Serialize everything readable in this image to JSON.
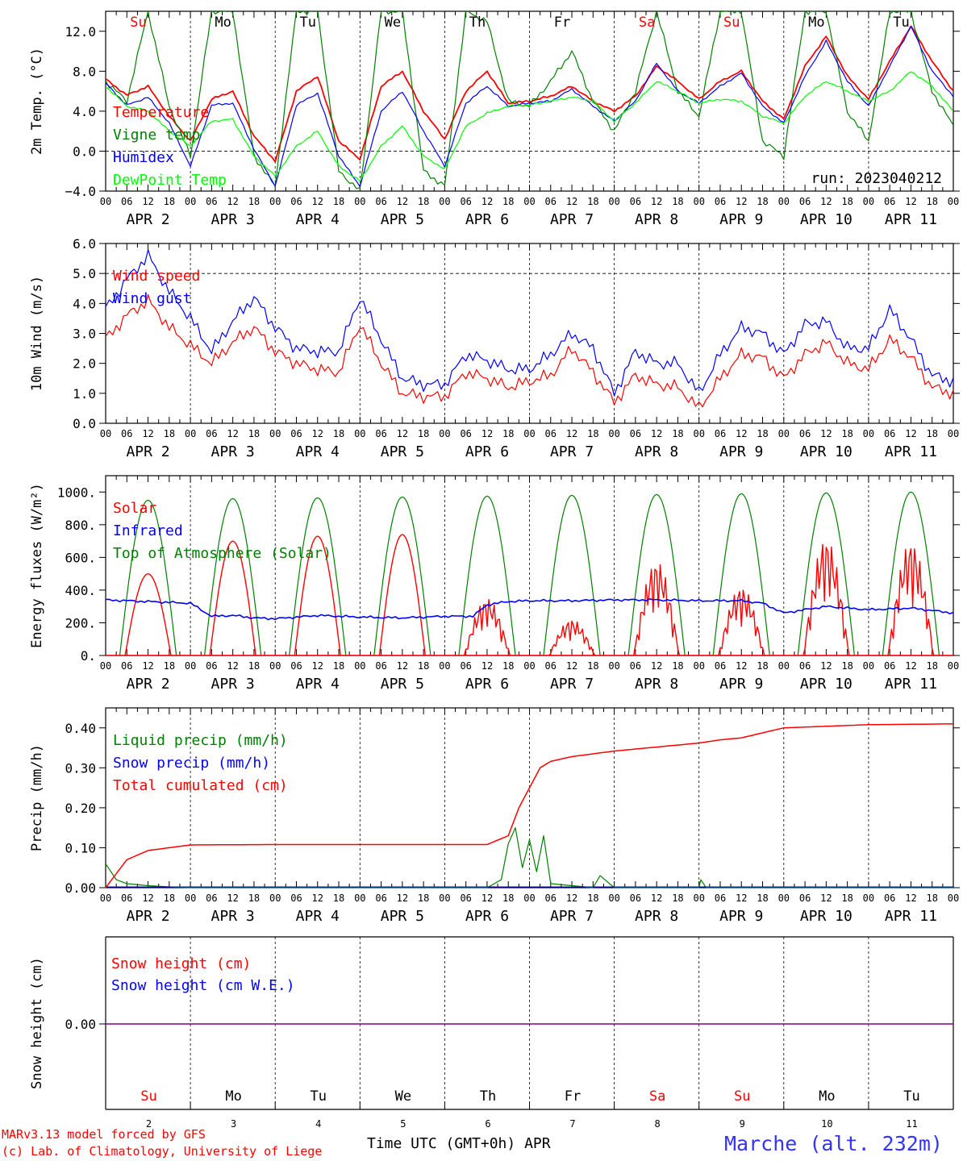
{
  "footer": {
    "model": "MARv3.13 model forced by GFS",
    "copyright": "(c) Lab. of Climatology, University of Liege",
    "xlabel": "Time UTC (GMT+0h) APR",
    "station": "Marche (alt. 232m)",
    "day_numbers": [
      "2",
      "3",
      "4",
      "5",
      "6",
      "7",
      "8",
      "9",
      "10",
      "11"
    ]
  },
  "colors": {
    "red": "#ff0000",
    "green": "#008000",
    "blue": "#0000ff",
    "lightgreen": "#00ff00",
    "purple": "#800080"
  },
  "chart_data": [
    {
      "id": "temp",
      "type": "line",
      "ylabel": "2m Temp. (°C)",
      "ylim": [
        -4,
        14
      ],
      "yticks": [
        -4,
        0,
        4,
        8,
        12
      ],
      "ytick_labels": [
        "−4.0",
        "0.0",
        "4.0",
        "8.0",
        "12.0"
      ],
      "dashed_ref": 0,
      "days": [
        "Su",
        "Mo",
        "Tu",
        "We",
        "Th",
        "Fr",
        "Sa",
        "Su",
        "Mo",
        "Tu"
      ],
      "day_colors": [
        "red",
        "black",
        "black",
        "black",
        "black",
        "black",
        "red",
        "red",
        "black",
        "black"
      ],
      "annotation": "run: 2023040212",
      "x_hours": [
        0,
        6,
        12,
        18,
        24,
        30,
        36,
        42,
        48,
        54,
        60,
        66,
        72,
        78,
        84,
        90,
        96,
        102,
        108,
        114,
        120,
        126,
        132,
        138,
        144,
        150,
        156,
        162,
        168,
        174,
        180,
        186,
        192,
        198,
        204,
        210,
        216,
        222,
        228,
        234,
        240
      ],
      "series": [
        {
          "name": "Temperature",
          "color": "red",
          "values": [
            7.2,
            5.6,
            6.5,
            3.5,
            1.0,
            5.2,
            6.0,
            1.5,
            -1.0,
            6.0,
            7.5,
            1.0,
            -0.8,
            6.5,
            8.0,
            4.0,
            1.2,
            6.0,
            8.0,
            4.8,
            5.0,
            5.5,
            6.5,
            5.0,
            4.0,
            5.5,
            8.5,
            7.0,
            5.2,
            7.0,
            8.0,
            5.0,
            3.2,
            8.5,
            11.5,
            7.5,
            5.2,
            9.0,
            12.5,
            9.0,
            6.0
          ]
        },
        {
          "name": "Vigne temp",
          "color": "green",
          "values": [
            7.0,
            5.0,
            14.0,
            4.5,
            -0.5,
            14.0,
            14.0,
            -0.5,
            -3.5,
            14.0,
            14.0,
            -2.0,
            -4.0,
            14.0,
            14.0,
            -2.0,
            -3.5,
            14.0,
            13.0,
            5.0,
            4.5,
            7.0,
            10.0,
            5.0,
            2.0,
            6.0,
            14.0,
            6.0,
            3.5,
            14.0,
            14.0,
            1.0,
            -0.5,
            14.0,
            14.0,
            4.0,
            1.0,
            14.0,
            14.0,
            6.0,
            2.5
          ]
        },
        {
          "name": "Humidex",
          "color": "blue",
          "values": [
            6.8,
            4.6,
            5.4,
            2.8,
            -1.5,
            4.6,
            4.8,
            0.2,
            -3.5,
            4.6,
            5.8,
            -0.5,
            -3.5,
            4.0,
            6.0,
            2.0,
            -1.5,
            4.8,
            6.5,
            4.5,
            4.8,
            5.0,
            6.2,
            4.5,
            3.0,
            5.0,
            8.8,
            6.0,
            4.8,
            6.5,
            7.8,
            4.5,
            2.8,
            7.5,
            11.0,
            7.0,
            4.5,
            8.5,
            12.5,
            8.0,
            5.5
          ]
        },
        {
          "name": "DewPoint Temp",
          "color": "lightgreen",
          "values": [
            6.5,
            4.5,
            4.0,
            2.0,
            0.5,
            3.0,
            3.2,
            -0.5,
            -2.5,
            0.5,
            2.0,
            -1.5,
            -3.0,
            0.5,
            2.5,
            -0.5,
            -1.8,
            2.5,
            3.8,
            4.5,
            4.6,
            5.0,
            5.4,
            5.0,
            3.0,
            4.8,
            7.0,
            6.0,
            4.8,
            5.2,
            5.0,
            3.5,
            2.8,
            5.5,
            7.0,
            6.0,
            5.0,
            6.0,
            8.0,
            6.5,
            4.0
          ]
        }
      ]
    },
    {
      "id": "wind",
      "type": "line",
      "ylabel": "10m Wind (m/s)",
      "ylim": [
        0,
        6
      ],
      "yticks": [
        0,
        1,
        2,
        3,
        4,
        5,
        6
      ],
      "ytick_labels": [
        "0.0",
        "1.0",
        "2.0",
        "3.0",
        "4.0",
        "5.0",
        "6.0"
      ],
      "dashed_ref": 5,
      "x_hours": [
        0,
        6,
        12,
        18,
        24,
        30,
        36,
        42,
        48,
        54,
        60,
        66,
        72,
        78,
        84,
        90,
        96,
        102,
        108,
        114,
        120,
        126,
        132,
        138,
        144,
        150,
        156,
        162,
        168,
        174,
        180,
        186,
        192,
        198,
        204,
        210,
        216,
        222,
        228,
        234,
        240
      ],
      "series": [
        {
          "name": "Wind speed",
          "color": "red",
          "values": [
            2.8,
            3.6,
            4.1,
            3.2,
            2.6,
            2.0,
            2.7,
            3.2,
            2.4,
            2.0,
            1.8,
            1.7,
            3.3,
            2.0,
            1.0,
            0.9,
            0.9,
            1.7,
            1.5,
            1.2,
            1.4,
            1.6,
            2.5,
            1.7,
            0.7,
            1.6,
            1.3,
            1.2,
            0.5,
            1.5,
            2.3,
            2.2,
            1.5,
            2.3,
            2.7,
            2.0,
            1.8,
            2.8,
            2.2,
            1.2,
            1.0
          ]
        },
        {
          "name": "Wind gust",
          "color": "blue",
          "values": [
            3.8,
            4.8,
            5.6,
            4.4,
            3.5,
            2.4,
            3.4,
            4.2,
            3.2,
            2.5,
            2.4,
            2.4,
            4.2,
            2.8,
            1.5,
            1.3,
            1.3,
            2.3,
            2.1,
            1.8,
            1.8,
            2.3,
            3.0,
            2.5,
            1.0,
            2.4,
            2.0,
            2.0,
            1.0,
            2.3,
            3.2,
            3.0,
            2.3,
            3.3,
            3.4,
            2.5,
            2.5,
            3.8,
            2.8,
            1.6,
            1.4
          ]
        }
      ]
    },
    {
      "id": "energy",
      "type": "line",
      "ylabel": "Energy fluxes (W/m²)",
      "ylim": [
        0,
        1100
      ],
      "yticks": [
        0,
        200,
        400,
        600,
        800,
        1000
      ],
      "ytick_labels": [
        "0.",
        "200.",
        "400.",
        "600.",
        "800.",
        "1000."
      ],
      "toa_peaks": [
        950,
        960,
        965,
        970,
        975,
        980,
        985,
        990,
        995,
        1000
      ],
      "solar_peaks": [
        500,
        700,
        730,
        740,
        350,
        220,
        580,
        420,
        720,
        700
      ],
      "infrared_x": [
        0,
        24,
        30,
        36,
        42,
        48,
        60,
        72,
        84,
        96,
        104,
        108,
        114,
        120,
        132,
        144,
        156,
        168,
        180,
        186,
        192,
        204,
        216,
        228,
        240
      ],
      "infrared_values": [
        340,
        320,
        240,
        245,
        230,
        225,
        245,
        235,
        230,
        240,
        240,
        310,
        330,
        335,
        335,
        340,
        340,
        335,
        335,
        320,
        260,
        300,
        280,
        290,
        260
      ],
      "series": [
        {
          "name": "Solar",
          "color": "red"
        },
        {
          "name": "Infrared",
          "color": "blue"
        },
        {
          "name": "Top of Atmosphere (Solar)",
          "color": "green"
        }
      ]
    },
    {
      "id": "precip",
      "type": "line",
      "ylabel": "Precip (mm/h)",
      "ylim": [
        0,
        0.45
      ],
      "yticks": [
        0,
        0.1,
        0.2,
        0.3,
        0.4
      ],
      "ytick_labels": [
        "0.00",
        "0.10",
        "0.20",
        "0.30",
        "0.40"
      ],
      "cumulated_x": [
        0,
        6,
        12,
        18,
        24,
        48,
        96,
        108,
        114,
        117,
        120,
        123,
        126,
        132,
        144,
        168,
        174,
        180,
        192,
        216,
        240
      ],
      "cumulated_values": [
        0.0,
        0.07,
        0.093,
        0.1,
        0.107,
        0.108,
        0.108,
        0.108,
        0.13,
        0.2,
        0.25,
        0.3,
        0.316,
        0.328,
        0.342,
        0.362,
        0.37,
        0.375,
        0.4,
        0.408,
        0.41
      ],
      "liquid_x": [
        0,
        3,
        6,
        12,
        18,
        24,
        108,
        112,
        114,
        116,
        118,
        120,
        122,
        124,
        126,
        132,
        138,
        140,
        144,
        168,
        168.5,
        170,
        180,
        240
      ],
      "liquid_values": [
        0.06,
        0.02,
        0.01,
        0.005,
        0.002,
        0.0,
        0.0,
        0.02,
        0.11,
        0.15,
        0.05,
        0.12,
        0.04,
        0.13,
        0.01,
        0.005,
        0.0,
        0.03,
        0.0,
        0.0,
        0.02,
        0.0,
        0.0,
        0.0
      ],
      "series": [
        {
          "name": "Liquid precip (mm/h)",
          "color": "green"
        },
        {
          "name": "Snow precip (mm/h)",
          "color": "blue"
        },
        {
          "name": "Total cumulated (cm)",
          "color": "red"
        }
      ]
    },
    {
      "id": "snow",
      "type": "line",
      "ylabel": "Snow height (cm)",
      "ytick_labels": [
        "0.00"
      ],
      "values": [
        0.0,
        0.0
      ],
      "series": [
        {
          "name": "Snow height (cm)",
          "color": "red"
        },
        {
          "name": "Snow height (cm W.E.)",
          "color": "blue"
        }
      ]
    }
  ],
  "x_axis": {
    "tick_labels": [
      "00",
      "06",
      "12",
      "18"
    ],
    "day_labels": [
      "APR  2",
      "APR  3",
      "APR  4",
      "APR  5",
      "APR  6",
      "APR  7",
      "APR  8",
      "APR  9",
      "APR 10",
      "APR 11"
    ],
    "days": 10
  }
}
